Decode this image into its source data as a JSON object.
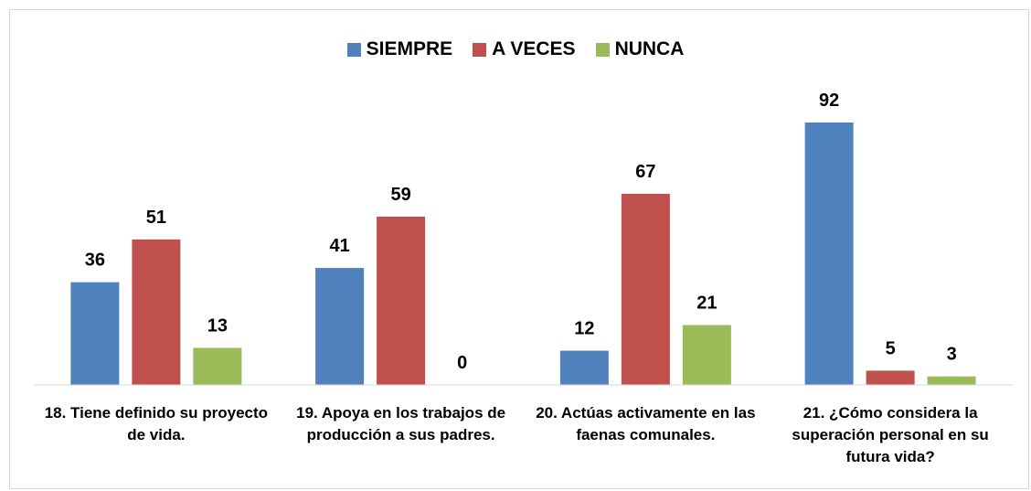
{
  "chart_data": {
    "type": "bar",
    "categories": [
      "18. Tiene definido su proyecto de vida.",
      "19. Apoya en los trabajos de producción a sus padres.",
      "20. Actúas activamente en las faenas comunales.",
      "21. ¿Cómo considera la superación personal en su futura vida?"
    ],
    "series": [
      {
        "name": "SIEMPRE",
        "color": "#4f81bd",
        "values": [
          36,
          41,
          12,
          92
        ]
      },
      {
        "name": "A VECES",
        "color": "#c0504d",
        "values": [
          51,
          59,
          67,
          5
        ]
      },
      {
        "name": "NUNCA",
        "color": "#9bbb59",
        "values": [
          13,
          0,
          21,
          3
        ]
      }
    ],
    "legend": "top"
  }
}
